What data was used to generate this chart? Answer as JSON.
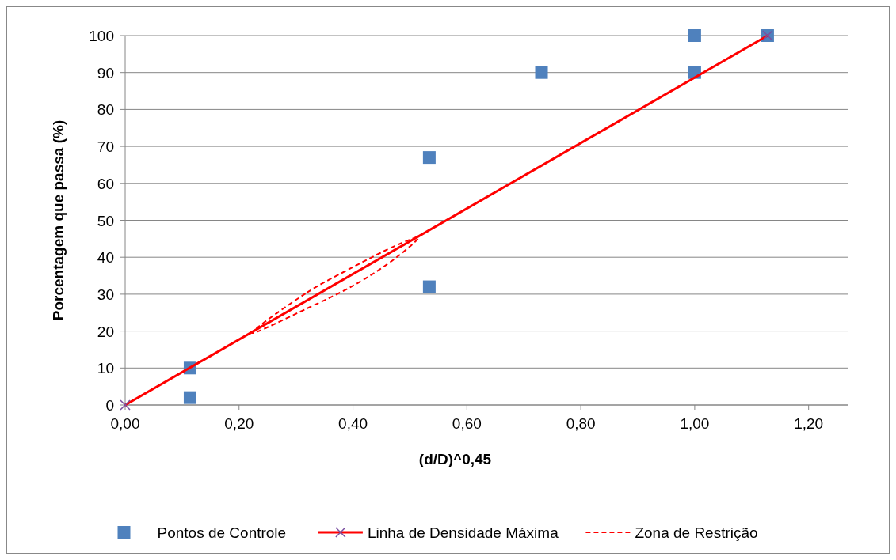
{
  "chart_data": {
    "type": "scatter",
    "xlabel": "(d/D)^0,45",
    "ylabel": "Porcentagem que passa (%)",
    "xlim": [
      0,
      1.27
    ],
    "xticks": [
      {
        "value": 0,
        "label": "0,00"
      },
      {
        "value": 0.2,
        "label": "0,20"
      },
      {
        "value": 0.4,
        "label": "0,40"
      },
      {
        "value": 0.6,
        "label": "0,60"
      },
      {
        "value": 0.8,
        "label": "0,80"
      },
      {
        "value": 1,
        "label": "1,00"
      },
      {
        "value": 1.2,
        "label": "1,20"
      }
    ],
    "ylim": [
      0,
      100
    ],
    "yticks": [
      0,
      10,
      20,
      30,
      40,
      50,
      60,
      70,
      80,
      90,
      100
    ],
    "grid": "y",
    "legend": "bottom",
    "series": [
      {
        "name": "Pontos de Controle",
        "marker": "square",
        "color": "#4f81bd",
        "x": [
          0.114,
          0.114,
          0.534,
          0.534,
          0.731,
          1.0,
          1.0,
          1.128
        ],
        "values": [
          10,
          2,
          67,
          32,
          90,
          100,
          90,
          100
        ]
      },
      {
        "name": "Linha de Densidade Máxima",
        "type": "line",
        "marker": "cross",
        "color": "#ff0000",
        "x": [
          0,
          1.128
        ],
        "values": [
          0,
          100
        ]
      },
      {
        "name": "Zona de Restrição",
        "type": "line",
        "line_style": "dashed",
        "marker": "none",
        "color": "#ff0000"
      }
    ]
  }
}
